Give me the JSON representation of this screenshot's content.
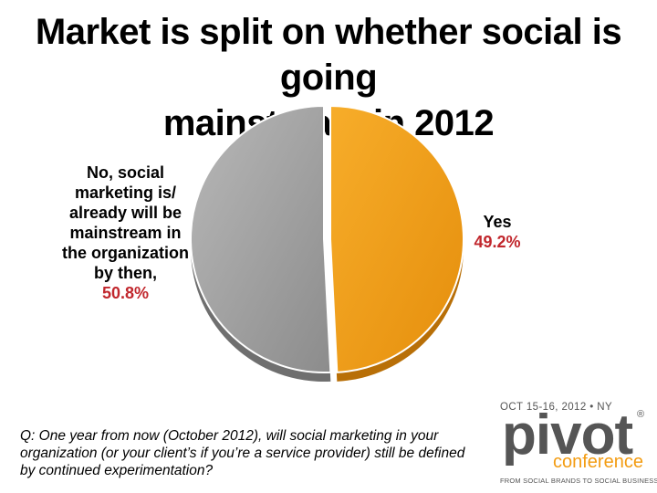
{
  "title": {
    "line1": "Market is split on whether social is going",
    "line2": "mainstream in 2012"
  },
  "chart_data": {
    "type": "pie",
    "title": "Market is split on whether social is going mainstream in 2012",
    "slices": [
      {
        "label_lines": [
          "No, social",
          "marketing is/",
          "already will be",
          "mainstream in",
          "the organization",
          "by then,"
        ],
        "value_text": "50.8%",
        "value": 50.8,
        "color": "#a6a6a6"
      },
      {
        "label_lines": [
          "Yes"
        ],
        "value_text": "49.2%",
        "value": 49.2,
        "color": "#f5a21c"
      }
    ],
    "label_value_color": "#c1272d"
  },
  "question": {
    "line1": "Q: One year from now (October 2012), will social marketing in your",
    "line2": "organization (or your client’s if you’re a service provider) still be defined",
    "line3": "by continued experimentation?"
  },
  "logo": {
    "date_line": "OCT 15-16, 2012 • NY",
    "wordmark": "pivot",
    "registered": "®",
    "subtitle": "conference",
    "tagline": "FROM SOCIAL BRANDS TO SOCIAL BUSINESS",
    "accent_color": "#f39c12",
    "gray_color": "#555555"
  }
}
